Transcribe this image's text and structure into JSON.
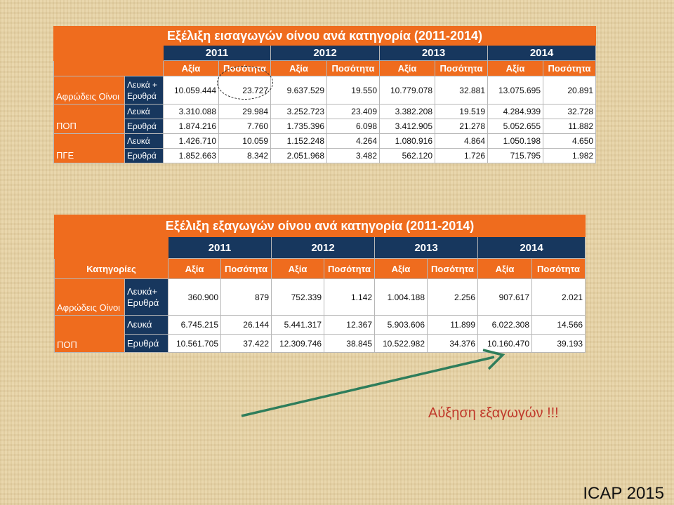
{
  "imports": {
    "title": "Εξέλιξη εισαγωγών οίνου ανά κατηγορία (2011-2014)",
    "years": [
      "2011",
      "2012",
      "2013",
      "2014"
    ],
    "col_value": "Αξία",
    "col_qty": "Ποσότητα",
    "categories": [
      {
        "name": "Αφρώδεις Οίνοι",
        "rows": [
          {
            "sub": "Λευκά + Ερυθρά",
            "values": [
              "10.059.444",
              "23.727",
              "9.637.529",
              "19.550",
              "10.779.078",
              "32.881",
              "13.075.695",
              "20.891"
            ]
          }
        ]
      },
      {
        "name": "ΠΟΠ",
        "rows": [
          {
            "sub": "Λευκά",
            "values": [
              "3.310.088",
              "29.984",
              "3.252.723",
              "23.409",
              "3.382.208",
              "19.519",
              "4.284.939",
              "32.728"
            ]
          },
          {
            "sub": "Ερυθρά",
            "values": [
              "1.874.216",
              "7.760",
              "1.735.396",
              "6.098",
              "3.412.905",
              "21.278",
              "5.052.655",
              "11.882"
            ]
          }
        ]
      },
      {
        "name": "ΠΓΕ",
        "rows": [
          {
            "sub": "Λευκά",
            "values": [
              "1.426.710",
              "10.059",
              "1.152.248",
              "4.264",
              "1.080.916",
              "4.864",
              "1.050.198",
              "4.650"
            ]
          },
          {
            "sub": "Ερυθρά",
            "values": [
              "1.852.663",
              "8.342",
              "2.051.968",
              "3.482",
              "562.120",
              "1.726",
              "715.795",
              "1.982"
            ]
          }
        ]
      }
    ]
  },
  "exports": {
    "title": "Εξέλιξη εξαγωγών οίνου ανά κατηγορία (2011-2014)",
    "years": [
      "2011",
      "2012",
      "2013",
      "2014"
    ],
    "header_label": "Κατηγορίες",
    "col_value": "Αξία",
    "col_qty": "Ποσότητα",
    "categories": [
      {
        "name": "Αφρώδεις Οίνοι",
        "rows": [
          {
            "sub": "Λευκά+ Ερυθρά",
            "values": [
              "360.900",
              "879",
              "752.339",
              "1.142",
              "1.004.188",
              "2.256",
              "907.617",
              "2.021"
            ]
          }
        ]
      },
      {
        "name": "ΠΟΠ",
        "rows": [
          {
            "sub": "Λευκά",
            "values": [
              "6.745.215",
              "26.144",
              "5.441.317",
              "12.367",
              "5.903.606",
              "11.899",
              "6.022.308",
              "14.566"
            ]
          },
          {
            "sub": "Ερυθρά",
            "values": [
              "10.561.705",
              "37.422",
              "12.309.746",
              "38.845",
              "10.522.982",
              "34.376",
              "10.160.470",
              "39.193"
            ]
          }
        ]
      }
    ]
  },
  "annotation": {
    "text": "Αύξηση εξαγωγών !!!",
    "color": "#c0392b",
    "arrow_color": "#2e7d5b"
  },
  "footer": {
    "text": "ICAP 2015"
  },
  "colors": {
    "orange": "#ef6c1e",
    "navy": "#17375e",
    "background": "#e7d3a6"
  }
}
